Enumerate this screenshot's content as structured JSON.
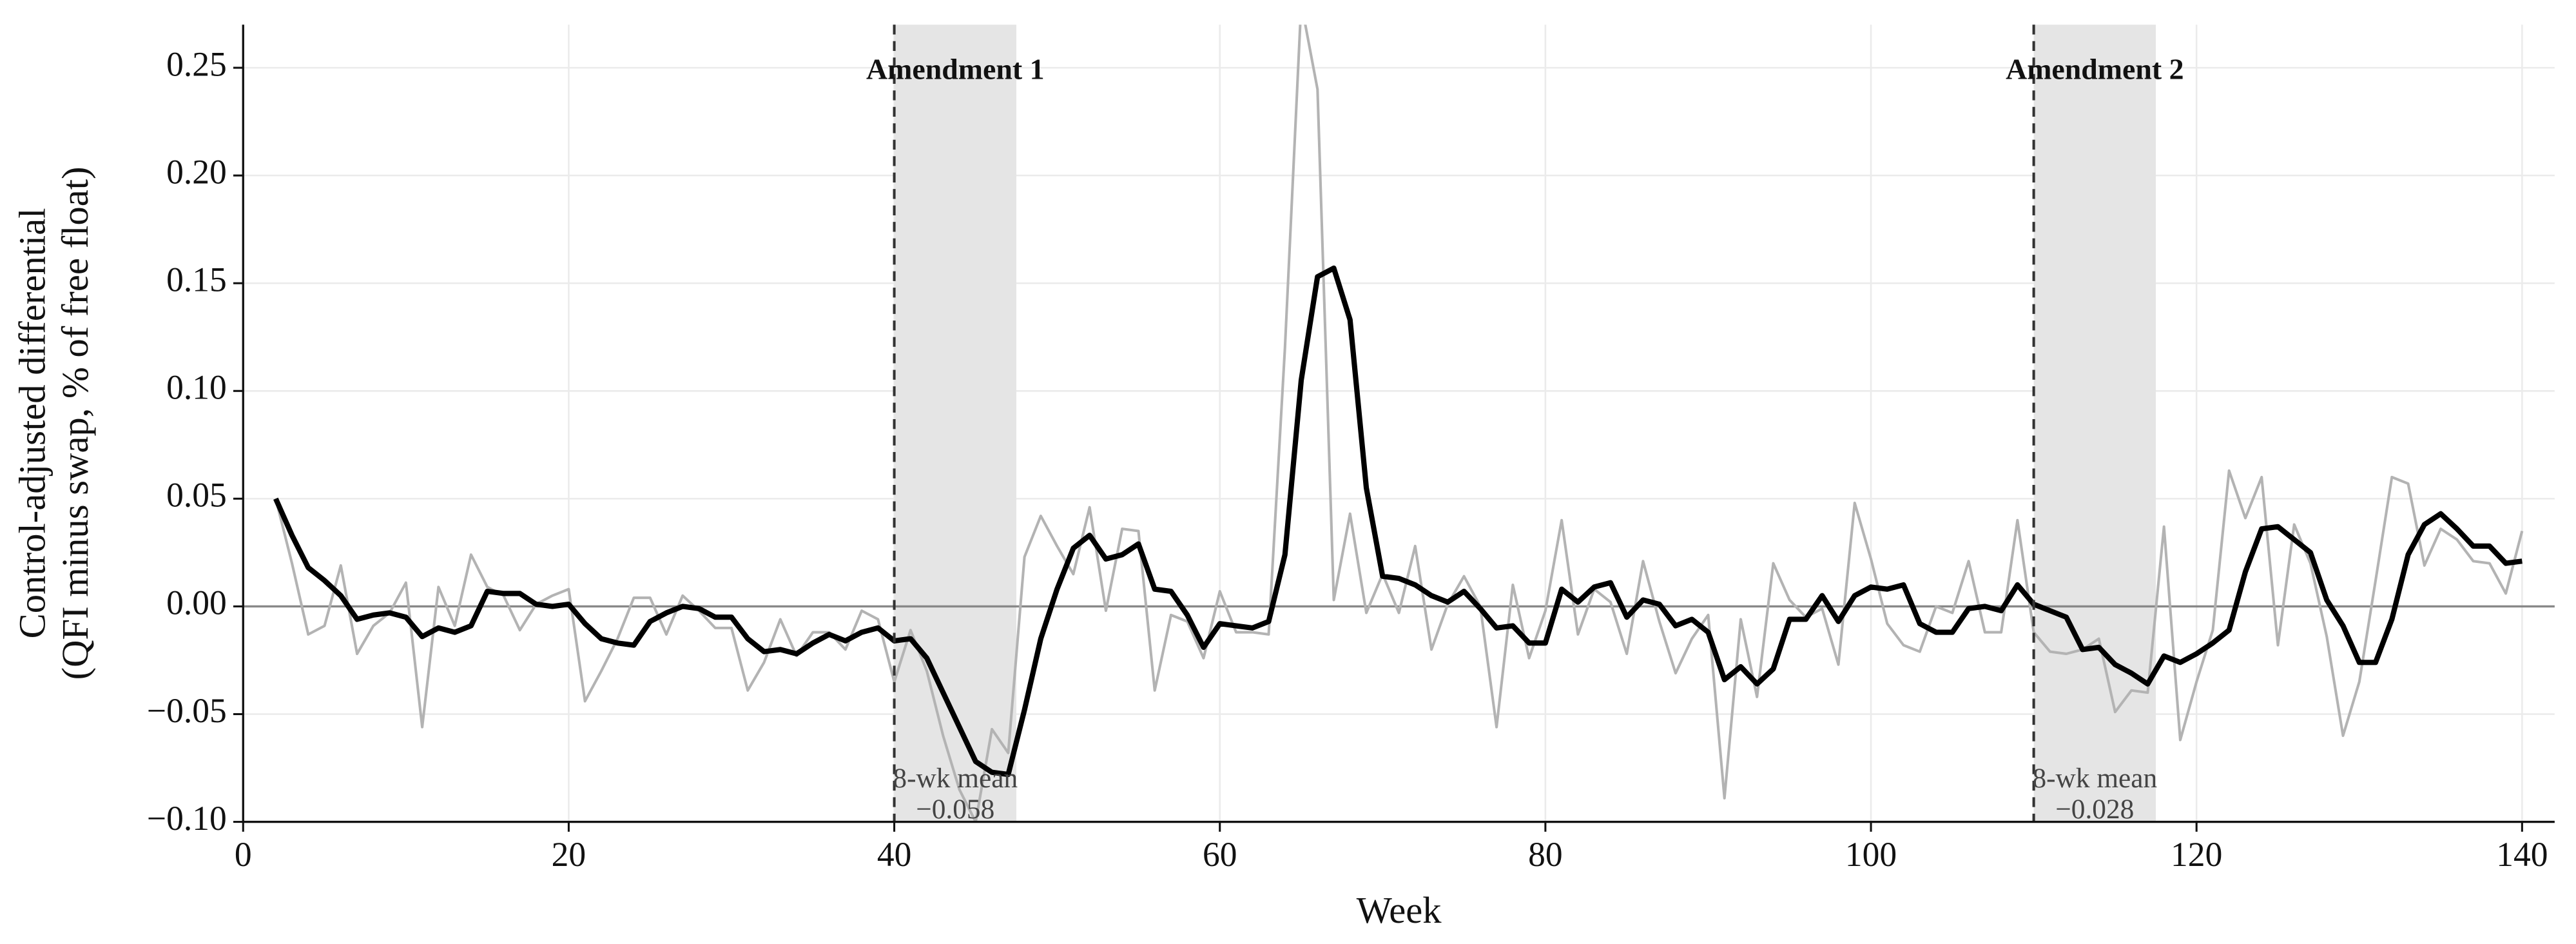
{
  "chart_data": {
    "type": "line",
    "xlabel": "Week",
    "ylabel": [
      "Control-adjusted differential",
      "(QFI minus swap, % of free float)"
    ],
    "x": [
      2,
      3,
      4,
      5,
      6,
      7,
      8,
      9,
      10,
      11,
      12,
      13,
      14,
      15,
      16,
      17,
      18,
      19,
      20,
      21,
      22,
      23,
      24,
      25,
      26,
      27,
      28,
      29,
      30,
      31,
      32,
      33,
      34,
      35,
      36,
      37,
      38,
      39,
      40,
      41,
      42,
      43,
      44,
      45,
      46,
      47,
      48,
      49,
      50,
      51,
      52,
      53,
      54,
      55,
      56,
      57,
      58,
      59,
      60,
      61,
      62,
      63,
      64,
      65,
      66,
      67,
      68,
      69,
      70,
      71,
      72,
      73,
      74,
      75,
      76,
      77,
      78,
      79,
      80,
      81,
      82,
      83,
      84,
      85,
      86,
      87,
      88,
      89,
      90,
      91,
      92,
      93,
      94,
      95,
      96,
      97,
      98,
      99,
      100,
      101,
      102,
      103,
      104,
      105,
      106,
      107,
      108,
      109,
      110,
      111,
      112,
      113,
      114,
      115,
      116,
      117,
      118,
      119,
      120,
      121,
      122,
      123,
      124,
      125,
      126,
      127,
      128,
      129,
      130,
      131,
      132,
      133,
      134,
      135,
      136,
      137,
      138,
      139,
      140
    ],
    "series": [
      {
        "color": "#b3b3b3",
        "width": 1.6,
        "values": [
          0.05,
          0.02,
          -0.013,
          -0.009,
          0.019,
          -0.022,
          -0.009,
          -0.003,
          0.011,
          -0.056,
          0.009,
          -0.009,
          0.024,
          0.009,
          0.005,
          -0.011,
          0.001,
          0.005,
          0.008,
          -0.044,
          -0.03,
          -0.015,
          0.004,
          0.004,
          -0.013,
          0.005,
          -0.002,
          -0.01,
          -0.01,
          -0.039,
          -0.026,
          -0.006,
          -0.023,
          -0.012,
          -0.012,
          -0.02,
          -0.002,
          -0.006,
          -0.035,
          -0.011,
          -0.03,
          -0.06,
          -0.085,
          -0.1,
          -0.057,
          -0.068,
          0.023,
          0.042,
          0.028,
          0.015,
          0.046,
          -0.002,
          0.036,
          0.035,
          -0.039,
          -0.004,
          -0.007,
          -0.024,
          0.007,
          -0.012,
          -0.012,
          -0.013,
          0.12,
          0.28,
          0.24,
          0.003,
          0.043,
          -0.003,
          0.015,
          -0.003,
          0.028,
          -0.02,
          0.001,
          0.014,
          0.0,
          -0.056,
          0.01,
          -0.024,
          -0.002,
          0.04,
          -0.013,
          0.008,
          0.002,
          -0.022,
          0.021,
          -0.007,
          -0.031,
          -0.015,
          -0.004,
          -0.089,
          -0.006,
          -0.042,
          0.02,
          0.003,
          -0.005,
          -0.001,
          -0.027,
          0.048,
          0.022,
          -0.008,
          -0.018,
          -0.021,
          0.0,
          -0.003,
          0.021,
          -0.012,
          -0.012,
          0.04,
          -0.012,
          -0.021,
          -0.022,
          -0.02,
          -0.015,
          -0.049,
          -0.039,
          -0.04,
          0.037,
          -0.062,
          -0.035,
          -0.011,
          0.063,
          0.041,
          0.06,
          -0.018,
          0.038,
          0.02,
          -0.014,
          -0.06,
          -0.035,
          0.012,
          0.06,
          0.057,
          0.019,
          0.036,
          0.031,
          0.021,
          0.02,
          0.006,
          0.035
        ]
      },
      {
        "color": "#000000",
        "width": 3.2,
        "values": [
          0.05,
          0.033,
          0.018,
          0.012,
          0.005,
          -0.006,
          -0.004,
          -0.003,
          -0.005,
          -0.014,
          -0.01,
          -0.012,
          -0.009,
          0.007,
          0.006,
          0.006,
          0.001,
          0.0,
          0.001,
          -0.008,
          -0.015,
          -0.017,
          -0.018,
          -0.007,
          -0.003,
          0.0,
          -0.001,
          -0.005,
          -0.005,
          -0.015,
          -0.021,
          -0.02,
          -0.022,
          -0.017,
          -0.013,
          -0.016,
          -0.012,
          -0.01,
          -0.016,
          -0.015,
          -0.024,
          -0.04,
          -0.056,
          -0.072,
          -0.077,
          -0.078,
          -0.048,
          -0.015,
          0.008,
          0.027,
          0.033,
          0.022,
          0.024,
          0.029,
          0.008,
          0.007,
          -0.004,
          -0.019,
          -0.008,
          -0.009,
          -0.01,
          -0.007,
          0.024,
          0.105,
          0.153,
          0.157,
          0.133,
          0.055,
          0.014,
          0.013,
          0.01,
          0.005,
          0.002,
          0.007,
          -0.001,
          -0.01,
          -0.009,
          -0.017,
          -0.017,
          0.008,
          0.002,
          0.009,
          0.011,
          -0.005,
          0.003,
          0.001,
          -0.009,
          -0.006,
          -0.012,
          -0.034,
          -0.028,
          -0.036,
          -0.029,
          -0.006,
          -0.006,
          0.005,
          -0.007,
          0.005,
          0.009,
          0.008,
          0.01,
          -0.008,
          -0.012,
          -0.012,
          -0.001,
          0.0,
          -0.002,
          0.01,
          0.001,
          -0.002,
          -0.005,
          -0.02,
          -0.019,
          -0.027,
          -0.031,
          -0.036,
          -0.023,
          -0.026,
          -0.022,
          -0.017,
          -0.011,
          0.016,
          0.036,
          0.037,
          0.031,
          0.025,
          0.003,
          -0.009,
          -0.026,
          -0.026,
          -0.006,
          0.024,
          0.038,
          0.043,
          0.036,
          0.028,
          0.028,
          0.02,
          0.021
        ]
      }
    ],
    "events": [
      {
        "name": "Amendment 1",
        "week": 40,
        "window": [
          40,
          47.5
        ],
        "mean_text": "8-wk mean",
        "mean_label": "−0.058"
      },
      {
        "name": "Amendment 2",
        "week": 110,
        "window": [
          110,
          117.5
        ],
        "mean_text": "8-wk mean",
        "mean_label": "−0.028"
      }
    ],
    "xlim": [
      0,
      142
    ],
    "xticks": [
      0,
      20,
      40,
      60,
      80,
      100,
      120,
      140
    ],
    "ylim": [
      -0.1,
      0.27
    ],
    "yticks": [
      {
        "value": -0.1,
        "label": "−0.10"
      },
      {
        "value": -0.05,
        "label": "−0.05"
      },
      {
        "value": 0,
        "label": "0.00"
      },
      {
        "value": 0.05,
        "label": "0.05"
      },
      {
        "value": 0.1,
        "label": "0.10"
      },
      {
        "value": 0.15,
        "label": "0.15"
      },
      {
        "value": 0.2,
        "label": "0.20"
      },
      {
        "value": 0.25,
        "label": "0.25"
      }
    ],
    "grid": true,
    "zero_line": true
  }
}
